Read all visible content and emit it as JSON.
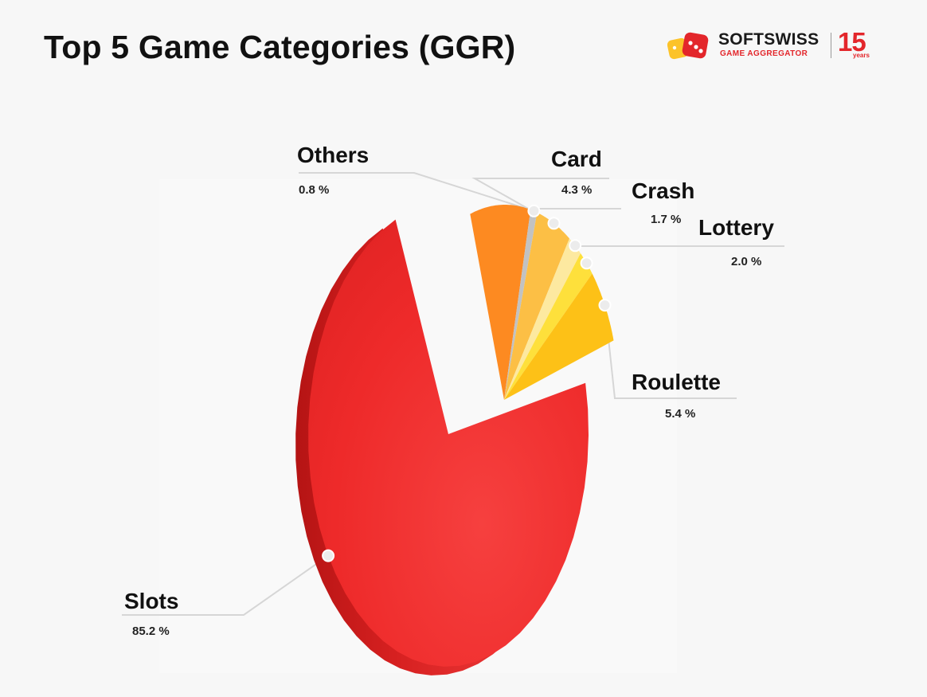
{
  "page": {
    "title": "Top 5 Game Categories (GGR)"
  },
  "logo": {
    "name": "SOFTSWISS",
    "subtitle": "GAME AGGREGATOR",
    "anniversary_number": "15",
    "anniversary_label": "years"
  },
  "colors": {
    "accent": "#e3262b",
    "slots": "#ee2a2a",
    "others": "#c2c2c2",
    "card": "#fcbf45",
    "crash": "#fde9a0",
    "lottery": "#fee03b",
    "roulette": "#fdc117",
    "leader_line": "#d6d6d6"
  },
  "chart_data": {
    "type": "pie",
    "title": "Top 5 Game Categories (GGR)",
    "unit": "%",
    "slices": [
      {
        "key": "slots",
        "label": "Slots",
        "value": 85.2,
        "display": "85.2 %",
        "color": "#ee2a2a"
      },
      {
        "key": "others",
        "label": "Others",
        "value": 0.8,
        "display": "0.8 %",
        "color": "#c2c2c2"
      },
      {
        "key": "card",
        "label": "Card",
        "value": 4.3,
        "display": "4.3 %",
        "color": "#fcbf45"
      },
      {
        "key": "crash",
        "label": "Crash",
        "value": 1.7,
        "display": "1.7 %",
        "color": "#fde9a0"
      },
      {
        "key": "lottery",
        "label": "Lottery",
        "value": 2.0,
        "display": "2.0 %",
        "color": "#fee03b"
      },
      {
        "key": "roulette",
        "label": "Roulette",
        "value": 5.4,
        "display": "5.4 %",
        "color": "#fdc117"
      }
    ],
    "orange_slice_color": "#fd8a21",
    "legend": "none"
  }
}
